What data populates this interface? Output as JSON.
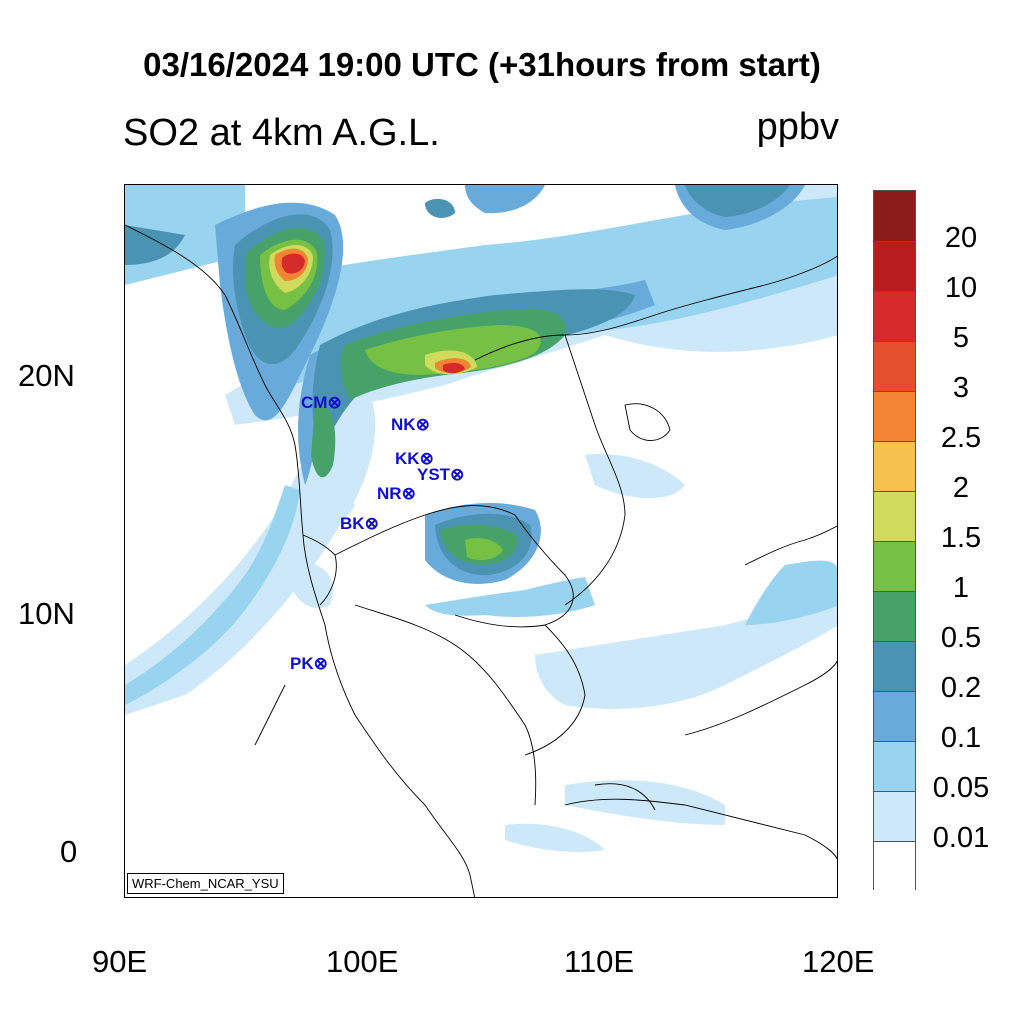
{
  "title": "03/16/2024 19:00 UTC (+31hours from start)",
  "subtitle": "SO2 at 4km A.G.L.",
  "units": "ppbv",
  "credit": "WRF-Chem_NCAR_YSU",
  "axes": {
    "x_ticks": [
      "90E",
      "100E",
      "110E",
      "120E"
    ],
    "y_ticks": [
      "20N",
      "10N",
      "0"
    ],
    "lon_range": [
      90,
      120
    ],
    "lat_range": [
      -2,
      28
    ]
  },
  "colorbar": {
    "labels": [
      "20",
      "10",
      "5",
      "3",
      "2.5",
      "2",
      "1.5",
      "1",
      "0.5",
      "0.2",
      "0.1",
      "0.05",
      "0.01"
    ],
    "colors": [
      "#8b1a1a",
      "#b81c1c",
      "#d42a2a",
      "#e4502e",
      "#f28534",
      "#f7c150",
      "#cfdb5c",
      "#76c044",
      "#47a26a",
      "#4a93b3",
      "#68abdb",
      "#98d3f0",
      "#cde9f9",
      "#ffffff"
    ]
  },
  "stations": [
    {
      "name": "CM",
      "lon": 98.9,
      "lat": 18.8
    },
    {
      "name": "NK",
      "lon": 102.8,
      "lat": 17.9
    },
    {
      "name": "KK",
      "lon": 102.8,
      "lat": 16.4
    },
    {
      "name": "YST",
      "lon": 104.2,
      "lat": 15.8
    },
    {
      "name": "NR",
      "lon": 102.1,
      "lat": 15.0
    },
    {
      "name": "BK",
      "lon": 100.6,
      "lat": 13.7
    },
    {
      "name": "PK",
      "lon": 98.4,
      "lat": 7.9
    }
  ]
}
